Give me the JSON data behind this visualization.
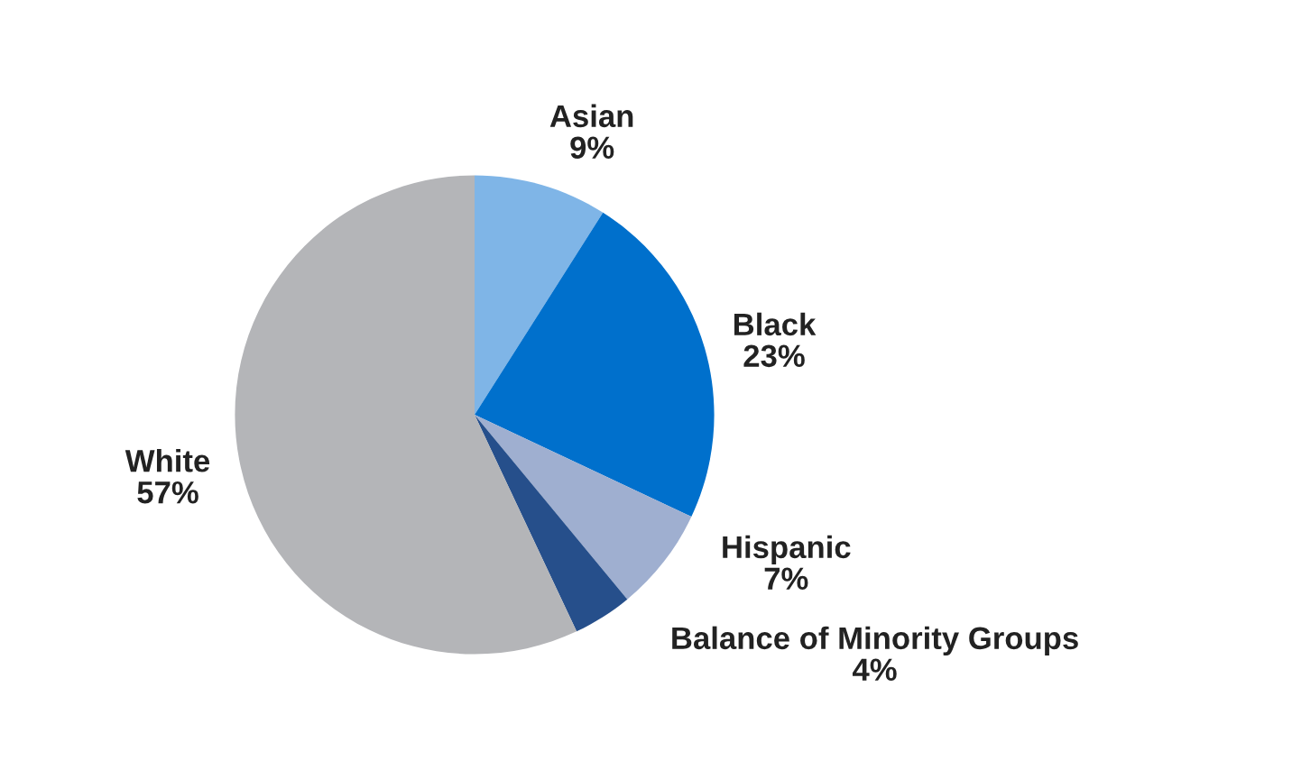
{
  "chart_data": {
    "type": "pie",
    "categories": [
      "Asian",
      "Black",
      "Hispanic",
      "Balance of Minority Groups",
      "White"
    ],
    "values": [
      9,
      23,
      7,
      4,
      57
    ],
    "colors": [
      "#7fb5e7",
      "#0070cc",
      "#9fafd0",
      "#264f8b",
      "#b4b5b8"
    ],
    "value_labels": [
      "9%",
      "23%",
      "7%",
      "4%",
      "57%"
    ]
  }
}
